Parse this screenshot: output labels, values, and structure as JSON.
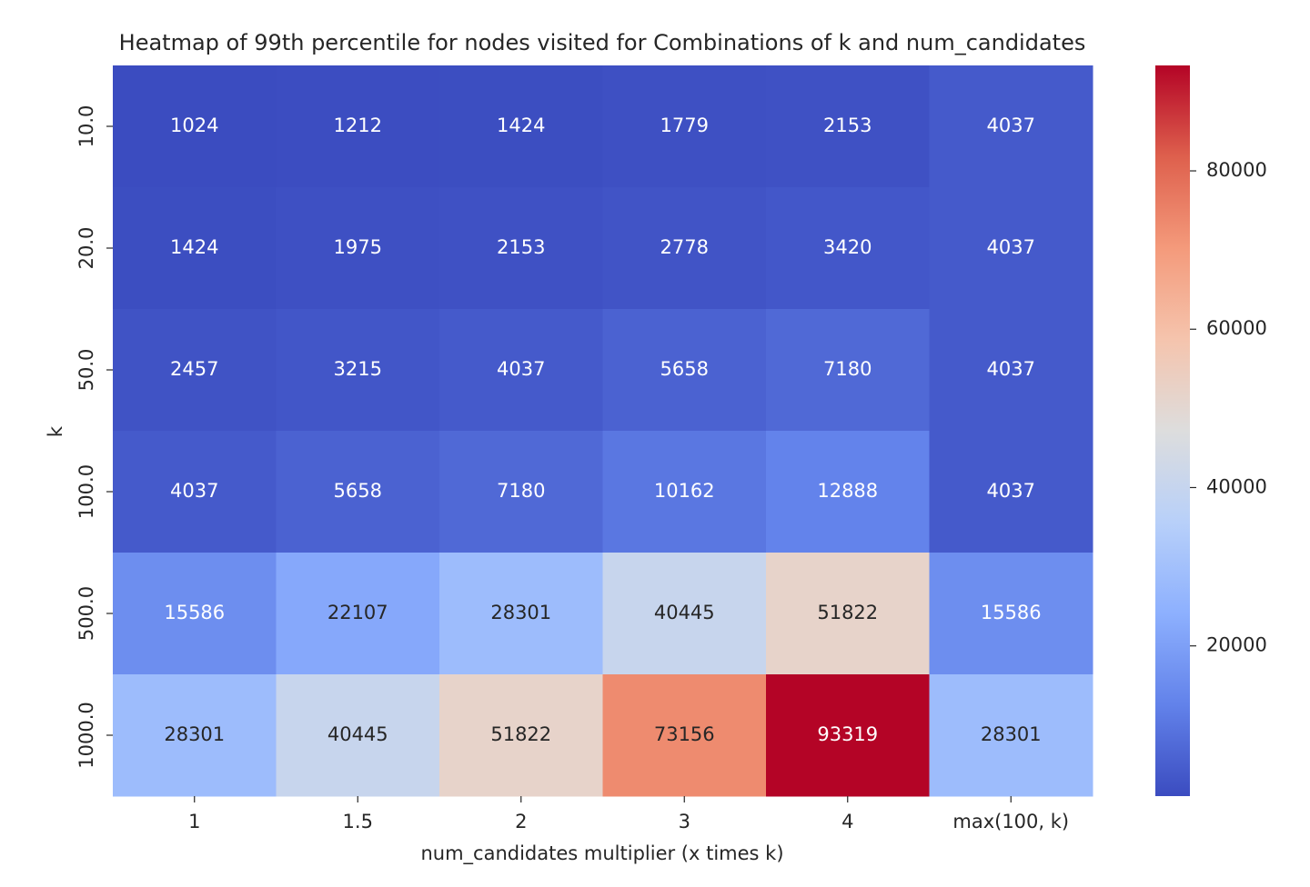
{
  "chart_data": {
    "type": "heatmap",
    "title": "Heatmap of 99th percentile for nodes visited for Combinations of k and num_candidates",
    "x_label": "num_candidates multiplier (x times k)",
    "y_label": "k",
    "x_categories": [
      "1",
      "1.5",
      "2",
      "3",
      "4",
      "max(100, k)"
    ],
    "y_categories": [
      "10.0",
      "20.0",
      "50.0",
      "100.0",
      "500.0",
      "1000.0"
    ],
    "values": [
      [
        1024,
        1212,
        1424,
        1779,
        2153,
        4037
      ],
      [
        1424,
        1975,
        2153,
        2778,
        3420,
        4037
      ],
      [
        2457,
        3215,
        4037,
        5658,
        7180,
        4037
      ],
      [
        4037,
        5658,
        7180,
        10162,
        12888,
        4037
      ],
      [
        15586,
        22107,
        28301,
        40445,
        51822,
        15586
      ],
      [
        28301,
        40445,
        51822,
        73156,
        93319,
        28301
      ]
    ],
    "colormap": "coolwarm",
    "clim": [
      1024,
      93319
    ],
    "cticks": [
      20000,
      40000,
      60000,
      80000
    ]
  }
}
